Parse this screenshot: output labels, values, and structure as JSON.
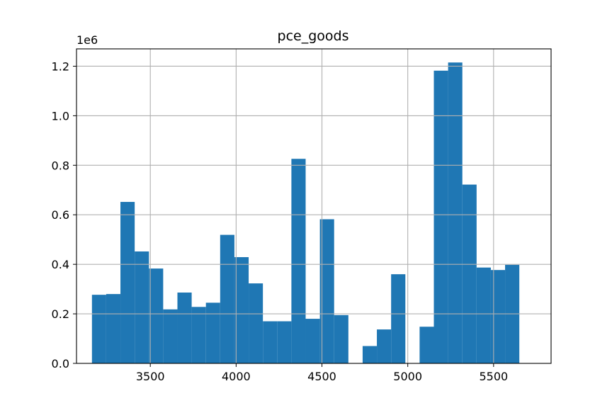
{
  "chart_data": {
    "type": "bar",
    "title": "pce_goods",
    "offset_label": "1e6",
    "xlabel": "",
    "ylabel": "",
    "grid": true,
    "xlim": [
      3070,
      5835
    ],
    "ylim": [
      0,
      1.27
    ],
    "x_ticks": [
      3500,
      4000,
      4500,
      5000,
      5500
    ],
    "y_ticks": [
      0.0,
      0.2,
      0.4,
      0.6,
      0.8,
      1.0,
      1.2
    ],
    "x_tick_labels": [
      "3500",
      "4000",
      "4500",
      "5000",
      "5500"
    ],
    "y_tick_labels": [
      "0.0",
      "0.2",
      "0.4",
      "0.6",
      "0.8",
      "1.0",
      "1.2"
    ],
    "bar_color": "#1f77b4",
    "bins": [
      {
        "x0": 3160,
        "x1": 3243,
        "value": 0.277
      },
      {
        "x0": 3243,
        "x1": 3326,
        "value": 0.28
      },
      {
        "x0": 3326,
        "x1": 3409,
        "value": 0.652
      },
      {
        "x0": 3409,
        "x1": 3492,
        "value": 0.452
      },
      {
        "x0": 3492,
        "x1": 3575,
        "value": 0.383
      },
      {
        "x0": 3575,
        "x1": 3658,
        "value": 0.218
      },
      {
        "x0": 3658,
        "x1": 3741,
        "value": 0.286
      },
      {
        "x0": 3741,
        "x1": 3824,
        "value": 0.228
      },
      {
        "x0": 3824,
        "x1": 3907,
        "value": 0.245
      },
      {
        "x0": 3907,
        "x1": 3990,
        "value": 0.519
      },
      {
        "x0": 3990,
        "x1": 4073,
        "value": 0.429
      },
      {
        "x0": 4073,
        "x1": 4156,
        "value": 0.323
      },
      {
        "x0": 4156,
        "x1": 4239,
        "value": 0.17
      },
      {
        "x0": 4239,
        "x1": 4322,
        "value": 0.17
      },
      {
        "x0": 4322,
        "x1": 4405,
        "value": 0.826
      },
      {
        "x0": 4405,
        "x1": 4488,
        "value": 0.18
      },
      {
        "x0": 4488,
        "x1": 4571,
        "value": 0.582
      },
      {
        "x0": 4571,
        "x1": 4654,
        "value": 0.195
      },
      {
        "x0": 4654,
        "x1": 4737,
        "value": 0
      },
      {
        "x0": 4737,
        "x1": 4820,
        "value": 0.07
      },
      {
        "x0": 4820,
        "x1": 4903,
        "value": 0.137
      },
      {
        "x0": 4903,
        "x1": 4986,
        "value": 0.36
      },
      {
        "x0": 4986,
        "x1": 5069,
        "value": 0
      },
      {
        "x0": 5069,
        "x1": 5152,
        "value": 0.148
      },
      {
        "x0": 5152,
        "x1": 5235,
        "value": 1.182
      },
      {
        "x0": 5235,
        "x1": 5318,
        "value": 1.215
      },
      {
        "x0": 5318,
        "x1": 5401,
        "value": 0.722
      },
      {
        "x0": 5401,
        "x1": 5484,
        "value": 0.387
      },
      {
        "x0": 5484,
        "x1": 5567,
        "value": 0.377
      },
      {
        "x0": 5567,
        "x1": 5650,
        "value": 0.398
      }
    ]
  }
}
